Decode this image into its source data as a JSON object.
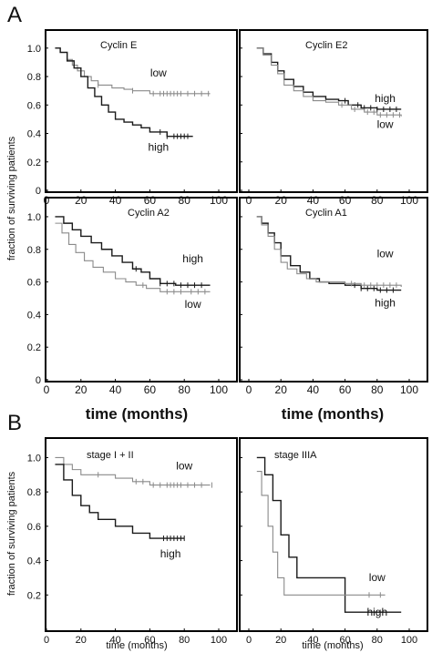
{
  "figure": {
    "panel_a_label": "A",
    "panel_b_label": "B",
    "ylabel": "fraction of surviving patients",
    "xlabel_a": "time (months)",
    "xlabel_b": "time (months)"
  },
  "colors": {
    "high": "#1a1a1a",
    "low": "#8a8a8a",
    "axis": "#000000",
    "frame": "#000000"
  },
  "chart_data": [
    {
      "id": "cyclin-e",
      "type": "line",
      "title": "Cyclin E",
      "x_ticks": [
        0,
        20,
        40,
        60,
        80,
        100
      ],
      "y_ticks": [
        0,
        0.2,
        0.4,
        0.6,
        0.8,
        1.0
      ],
      "xlim": [
        0,
        100
      ],
      "ylim": [
        0,
        1.05
      ],
      "series": [
        {
          "name": "low",
          "color": "low",
          "x": [
            5,
            8,
            12,
            15,
            18,
            22,
            26,
            30,
            38,
            45,
            50,
            55,
            60,
            70,
            80,
            95
          ],
          "y": [
            1.0,
            0.97,
            0.92,
            0.88,
            0.84,
            0.8,
            0.77,
            0.74,
            0.72,
            0.71,
            0.7,
            0.7,
            0.68,
            0.68,
            0.68,
            0.68
          ],
          "censor": [
            30,
            50,
            62,
            66,
            68,
            70,
            72,
            74,
            76,
            78,
            82,
            86,
            90,
            94
          ]
        },
        {
          "name": "high",
          "color": "high",
          "x": [
            5,
            8,
            12,
            16,
            20,
            24,
            28,
            32,
            36,
            40,
            45,
            50,
            55,
            60,
            70,
            75,
            85
          ],
          "y": [
            1.0,
            0.97,
            0.91,
            0.86,
            0.8,
            0.72,
            0.66,
            0.6,
            0.55,
            0.5,
            0.48,
            0.46,
            0.44,
            0.41,
            0.38,
            0.38,
            0.38
          ],
          "censor": [
            66,
            70,
            74,
            76,
            78,
            80,
            82
          ]
        }
      ],
      "labels": [
        {
          "text": "low",
          "x": 65,
          "y": 0.8
        },
        {
          "text": "high",
          "x": 65,
          "y": 0.28
        }
      ]
    },
    {
      "id": "cyclin-e2",
      "type": "line",
      "title": "Cyclin E2",
      "x_ticks": [
        0,
        20,
        40,
        60,
        80,
        100
      ],
      "y_ticks": [
        0,
        0.2,
        0.4,
        0.6,
        0.8,
        1.0
      ],
      "xlim": [
        0,
        100
      ],
      "ylim": [
        0,
        1.05
      ],
      "series": [
        {
          "name": "high",
          "color": "high",
          "x": [
            5,
            9,
            14,
            18,
            22,
            28,
            34,
            40,
            48,
            56,
            62,
            70,
            80,
            95
          ],
          "y": [
            1.0,
            0.96,
            0.9,
            0.84,
            0.78,
            0.73,
            0.69,
            0.66,
            0.64,
            0.63,
            0.6,
            0.58,
            0.57,
            0.57
          ],
          "censor": [
            60,
            68,
            72,
            76,
            80,
            84,
            88,
            92
          ]
        },
        {
          "name": "low",
          "color": "low",
          "x": [
            5,
            9,
            14,
            18,
            22,
            28,
            34,
            40,
            48,
            56,
            64,
            72,
            80,
            95
          ],
          "y": [
            1.0,
            0.95,
            0.88,
            0.82,
            0.74,
            0.7,
            0.66,
            0.63,
            0.62,
            0.6,
            0.57,
            0.55,
            0.53,
            0.52
          ],
          "censor": [
            58,
            66,
            74,
            78,
            82,
            86,
            90,
            94
          ]
        }
      ],
      "labels": [
        {
          "text": "high",
          "x": 85,
          "y": 0.62
        },
        {
          "text": "low",
          "x": 85,
          "y": 0.44
        }
      ]
    },
    {
      "id": "cyclin-a2",
      "type": "line",
      "title": "Cyclin A2",
      "x_ticks": [
        0,
        20,
        40,
        60,
        80,
        100
      ],
      "y_ticks": [
        0,
        0.2,
        0.4,
        0.6,
        0.8,
        1.0
      ],
      "xlim": [
        0,
        100
      ],
      "ylim": [
        0,
        1.05
      ],
      "series": [
        {
          "name": "high",
          "color": "high",
          "x": [
            5,
            10,
            15,
            20,
            26,
            32,
            38,
            44,
            50,
            55,
            60,
            66,
            75,
            95
          ],
          "y": [
            1.0,
            0.96,
            0.92,
            0.88,
            0.84,
            0.8,
            0.76,
            0.72,
            0.68,
            0.66,
            0.62,
            0.59,
            0.58,
            0.58
          ],
          "censor": [
            52,
            66,
            70,
            74,
            78,
            82,
            86,
            90
          ]
        },
        {
          "name": "low",
          "color": "low",
          "x": [
            5,
            9,
            13,
            17,
            22,
            27,
            33,
            40,
            46,
            52,
            58,
            66,
            75,
            95
          ],
          "y": [
            0.96,
            0.9,
            0.83,
            0.78,
            0.73,
            0.69,
            0.66,
            0.62,
            0.6,
            0.58,
            0.56,
            0.54,
            0.54,
            0.54
          ],
          "censor": [
            56,
            70,
            74,
            78,
            84,
            88,
            92
          ]
        }
      ],
      "labels": [
        {
          "text": "high",
          "x": 85,
          "y": 0.72
        },
        {
          "text": "low",
          "x": 85,
          "y": 0.44
        }
      ]
    },
    {
      "id": "cyclin-a1",
      "type": "line",
      "title": "Cyclin A1",
      "x_ticks": [
        0,
        20,
        40,
        60,
        80,
        100
      ],
      "y_ticks": [
        0,
        0.2,
        0.4,
        0.6,
        0.8,
        1.0
      ],
      "xlim": [
        0,
        100
      ],
      "ylim": [
        0,
        1.05
      ],
      "series": [
        {
          "name": "high",
          "color": "high",
          "x": [
            5,
            8,
            12,
            16,
            20,
            26,
            32,
            38,
            44,
            50,
            60,
            70,
            80,
            95
          ],
          "y": [
            1.0,
            0.96,
            0.9,
            0.84,
            0.76,
            0.7,
            0.66,
            0.62,
            0.6,
            0.59,
            0.58,
            0.56,
            0.55,
            0.55
          ],
          "censor": [
            66,
            70,
            74,
            78,
            82,
            86,
            90
          ]
        },
        {
          "name": "low",
          "color": "low",
          "x": [
            5,
            8,
            12,
            16,
            20,
            24,
            30,
            36,
            42,
            50,
            60,
            70,
            80,
            95
          ],
          "y": [
            1.0,
            0.95,
            0.88,
            0.8,
            0.72,
            0.68,
            0.65,
            0.62,
            0.6,
            0.6,
            0.59,
            0.58,
            0.58,
            0.57
          ],
          "censor": [
            64,
            72,
            76,
            80,
            84,
            88,
            92
          ]
        }
      ],
      "labels": [
        {
          "text": "low",
          "x": 85,
          "y": 0.75
        },
        {
          "text": "high",
          "x": 85,
          "y": 0.45
        }
      ]
    },
    {
      "id": "stage-i-ii",
      "type": "line",
      "title": "stage I + II",
      "x_ticks": [
        0,
        20,
        40,
        60,
        80,
        100
      ],
      "y_ticks": [
        0.2,
        0.4,
        0.6,
        0.8,
        1.0
      ],
      "xlim": [
        0,
        100
      ],
      "ylim": [
        0,
        1.05
      ],
      "series": [
        {
          "name": "low",
          "color": "low",
          "x": [
            5,
            10,
            15,
            20,
            30,
            40,
            50,
            60,
            70,
            80,
            90,
            95
          ],
          "y": [
            1.0,
            0.96,
            0.93,
            0.9,
            0.9,
            0.88,
            0.86,
            0.84,
            0.84,
            0.84,
            0.84,
            0.84
          ],
          "censor": [
            30,
            52,
            56,
            62,
            66,
            70,
            72,
            74,
            76,
            78,
            82,
            86,
            90,
            96
          ]
        },
        {
          "name": "high",
          "color": "high",
          "x": [
            5,
            10,
            15,
            20,
            25,
            30,
            40,
            50,
            60,
            70,
            80
          ],
          "y": [
            0.96,
            0.87,
            0.78,
            0.72,
            0.68,
            0.64,
            0.6,
            0.56,
            0.53,
            0.53,
            0.53
          ],
          "censor": [
            68,
            70,
            72,
            74,
            76,
            78,
            80
          ]
        }
      ],
      "labels": [
        {
          "text": "low",
          "x": 80,
          "y": 0.93
        },
        {
          "text": "high",
          "x": 72,
          "y": 0.42
        }
      ]
    },
    {
      "id": "stage-iiia",
      "type": "line",
      "title": "stage IIIA",
      "x_ticks": [
        0,
        20,
        40,
        60,
        80,
        100
      ],
      "y_ticks": [
        0.2,
        0.4,
        0.6,
        0.8,
        1.0
      ],
      "xlim": [
        0,
        100
      ],
      "ylim": [
        0,
        1.05
      ],
      "series": [
        {
          "name": "high",
          "color": "high",
          "x": [
            5,
            10,
            15,
            20,
            25,
            30,
            45,
            60,
            80,
            95
          ],
          "y": [
            1.0,
            0.9,
            0.75,
            0.55,
            0.42,
            0.3,
            0.3,
            0.1,
            0.1,
            0.1
          ],
          "censor": []
        },
        {
          "name": "low",
          "color": "low",
          "x": [
            5,
            8,
            12,
            15,
            18,
            22,
            30,
            50,
            75,
            85
          ],
          "y": [
            0.92,
            0.78,
            0.6,
            0.45,
            0.3,
            0.2,
            0.2,
            0.2,
            0.2,
            0.2
          ],
          "censor": [
            75,
            82
          ]
        }
      ],
      "labels": [
        {
          "text": "low",
          "x": 80,
          "y": 0.28
        },
        {
          "text": "high",
          "x": 80,
          "y": 0.08
        }
      ]
    }
  ]
}
